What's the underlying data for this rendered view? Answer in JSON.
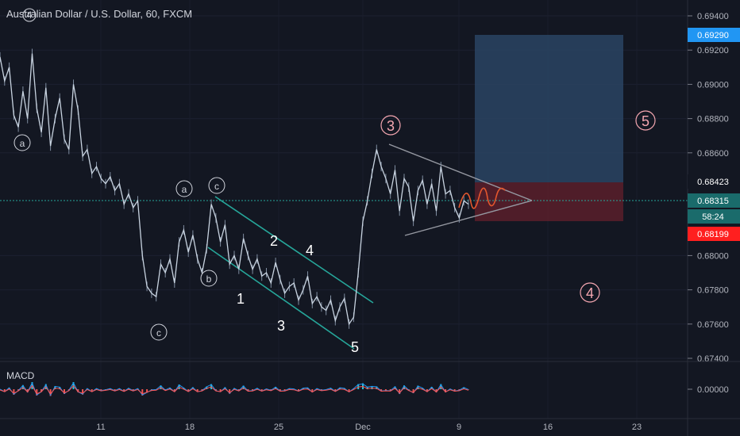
{
  "title": "Australian Dollar / U.S. Dollar, 60, FXCM",
  "colors": {
    "background": "#131722",
    "grid": "#1f2433",
    "candle": "#b9c6d4",
    "channel": "#26a69a",
    "triangle": "#9598a1",
    "target_box": "#2a4463",
    "stop_box": "#5b1f2a",
    "projection": "#e4572e",
    "pink_label": "#f4a6b0",
    "tag_blue": "#2196f3",
    "tag_red": "#ff1f1f",
    "tag_teal": "#1a6b6b",
    "macd_line": "#2196f3",
    "signal_line": "#ff5252",
    "hist_pos": "#26c6da",
    "hist_neg": "#ef5350"
  },
  "price_axis": {
    "ticks": [
      "0.69400",
      "0.69200",
      "0.69000",
      "0.68800",
      "0.68600",
      "0.68000",
      "0.67800",
      "0.67600",
      "0.67400"
    ]
  },
  "time_axis": {
    "ticks": [
      "11",
      "18",
      "25",
      "Dec",
      "9",
      "16",
      "23"
    ]
  },
  "price_tags": [
    {
      "label": "0.69290",
      "value": 0.6929,
      "color": "#2196f3"
    },
    {
      "label": "0.68423",
      "value": 0.68423,
      "color": "#d1d4dc"
    },
    {
      "label": "0.68315",
      "value": 0.68315,
      "color": "#1a6b6b"
    },
    {
      "label": "58:24",
      "value": 0.68215,
      "color": "#1a6b6b"
    },
    {
      "label": "0.68199",
      "value": 0.68199,
      "color": "#ff1f1f"
    }
  ],
  "wave_labels": {
    "circled_small": [
      "a",
      "c",
      "a",
      "c",
      "b"
    ],
    "impulse": [
      "1",
      "2",
      "3",
      "4",
      "5"
    ],
    "circled_major": [
      "3",
      "4",
      "5"
    ],
    "top_left": "4"
  },
  "macd": {
    "label": "MACD",
    "tick": "0.00000"
  },
  "chart_data": {
    "type": "line",
    "symbol": "Australian Dollar / U.S. Dollar",
    "interval": "60",
    "source": "FXCM",
    "ylim": [
      0.6735,
      0.695
    ],
    "x_ticks": [
      "11",
      "18",
      "25",
      "Dec",
      "9",
      "16",
      "23"
    ],
    "series": [
      {
        "values": [
          0.6916,
          0.6902,
          0.691,
          0.6882,
          0.6875,
          0.6896,
          0.688,
          0.6918,
          0.6886,
          0.6872,
          0.6898,
          0.6864,
          0.688,
          0.6892,
          0.6868,
          0.6862,
          0.69,
          0.6885,
          0.6858,
          0.6862,
          0.6848,
          0.6852,
          0.6845,
          0.6842,
          0.6846,
          0.6838,
          0.6842,
          0.683,
          0.6836,
          0.6828,
          0.6832,
          0.68,
          0.6782,
          0.6778,
          0.6776,
          0.6795,
          0.679,
          0.6798,
          0.6784,
          0.6808,
          0.6815,
          0.6802,
          0.6812,
          0.6798,
          0.679,
          0.6804,
          0.683,
          0.6822,
          0.6808,
          0.6818,
          0.6795,
          0.68,
          0.6792,
          0.681,
          0.68,
          0.6792,
          0.6798,
          0.6788,
          0.679,
          0.6784,
          0.6796,
          0.6786,
          0.6778,
          0.6782,
          0.6784,
          0.6774,
          0.678,
          0.6788,
          0.6772,
          0.6776,
          0.677,
          0.6768,
          0.6774,
          0.6762,
          0.677,
          0.6775,
          0.676,
          0.6764,
          0.679,
          0.682,
          0.6832,
          0.6848,
          0.6862,
          0.6852,
          0.6845,
          0.6836,
          0.685,
          0.6826,
          0.6845,
          0.684,
          0.682,
          0.6838,
          0.6844,
          0.683,
          0.6842,
          0.6826,
          0.6852,
          0.6836,
          0.6838,
          0.6828,
          0.6822,
          0.6832,
          0.683
        ]
      }
    ],
    "annotations": {
      "target": 0.6929,
      "entry": 0.68423,
      "last": 0.68315,
      "stop": 0.68199
    }
  }
}
